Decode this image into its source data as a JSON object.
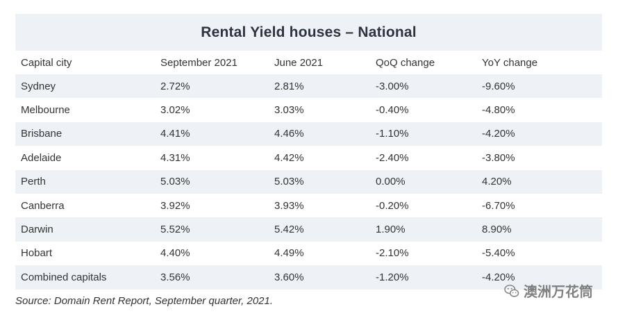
{
  "title": "Rental Yield houses – National",
  "columns": [
    "Capital city",
    "September 2021",
    "June 2021",
    "QoQ change",
    "YoY change"
  ],
  "rows": [
    [
      "Sydney",
      "2.72%",
      "2.81%",
      "-3.00%",
      "-9.60%"
    ],
    [
      "Melbourne",
      "3.02%",
      "3.03%",
      "-0.40%",
      "-4.80%"
    ],
    [
      "Brisbane",
      "4.41%",
      "4.46%",
      "-1.10%",
      "-4.20%"
    ],
    [
      "Adelaide",
      "4.31%",
      "4.42%",
      "-2.40%",
      "-3.80%"
    ],
    [
      "Perth",
      "5.03%",
      "5.03%",
      "0.00%",
      "4.20%"
    ],
    [
      "Canberra",
      "3.92%",
      "3.93%",
      "-0.20%",
      "-6.70%"
    ],
    [
      "Darwin",
      "5.52%",
      "5.42%",
      "1.90%",
      "8.90%"
    ],
    [
      "Hobart",
      "4.40%",
      "4.49%",
      "-2.10%",
      "-5.40%"
    ],
    [
      "Combined capitals",
      "3.56%",
      "3.60%",
      "-1.20%",
      "-4.20%"
    ]
  ],
  "source": "Source: Domain Rent Report, September quarter, 2021.",
  "watermark": {
    "text": "澳洲万花筒",
    "icon": "wechat-icon"
  },
  "colors": {
    "stripe": "#eef1f5",
    "title_text": "#2d3440",
    "body_text": "#333333"
  }
}
